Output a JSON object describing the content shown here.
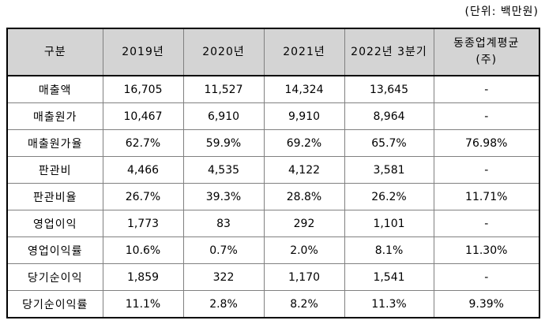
{
  "unit_label": "(단위: 백만원)",
  "table": {
    "columns": [
      "구분",
      "2019년",
      "2020년",
      "2021년",
      "2022년 3분기"
    ],
    "avg_column": {
      "line1": "동종업계평균",
      "line2": "(주)"
    },
    "rows": [
      {
        "label": "매출액",
        "values": [
          "16,705",
          "11,527",
          "14,324",
          "13,645",
          "-"
        ]
      },
      {
        "label": "매출원가",
        "values": [
          "10,467",
          "6,910",
          "9,910",
          "8,964",
          "-"
        ]
      },
      {
        "label": "매출원가율",
        "values": [
          "62.7%",
          "59.9%",
          "69.2%",
          "65.7%",
          "76.98%"
        ]
      },
      {
        "label": "판관비",
        "values": [
          "4,466",
          "4,535",
          "4,122",
          "3,581",
          "-"
        ]
      },
      {
        "label": "판관비율",
        "values": [
          "26.7%",
          "39.3%",
          "28.8%",
          "26.2%",
          "11.71%"
        ]
      },
      {
        "label": "영업이익",
        "values": [
          "1,773",
          "83",
          "292",
          "1,101",
          "-"
        ]
      },
      {
        "label": "영업이익률",
        "values": [
          "10.6%",
          "0.7%",
          "2.0%",
          "8.1%",
          "11.30%"
        ]
      },
      {
        "label": "당기순이익",
        "values": [
          "1,859",
          "322",
          "1,170",
          "1,541",
          "-"
        ]
      },
      {
        "label": "당기순이익률",
        "values": [
          "11.1%",
          "2.8%",
          "8.2%",
          "11.3%",
          "9.39%"
        ]
      }
    ]
  }
}
